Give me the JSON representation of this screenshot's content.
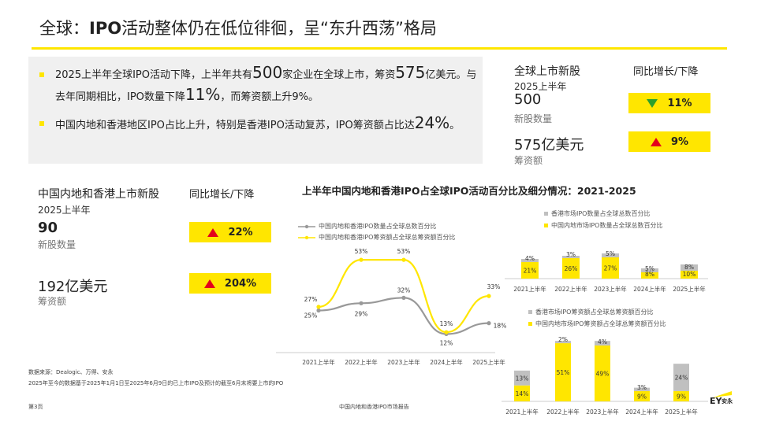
{
  "title": {
    "prefix": "全球：",
    "bold": "IPO",
    "suffix": "活动整体仍在低位徘徊，呈“东升西荡”格局"
  },
  "summary": {
    "bullet1": {
      "t1": "2025上半年全球IPO活动下降，上半年共有",
      "n1": "500",
      "t2": "家企业在全球上市，筹资",
      "n2": "575",
      "t3": "亿美元。与去年同期相比，IPO数量下降",
      "n3": "11%",
      "t4": "，而筹资额上升9%。"
    },
    "bullet2": {
      "t1": "中国内地和香港地区IPO占比上升，特别是香港IPO活动复苏，IPO筹资额占比达",
      "n1": "24%",
      "t2": "。"
    }
  },
  "global": {
    "heading": "全球上市新股",
    "yoy_heading": "同比增长/下降",
    "period": "2025上半年",
    "count_value": "500",
    "count_label": "新股数量",
    "count_change": "11%",
    "funds_value": "575亿美元",
    "funds_label": "筹资额",
    "funds_change": "9%"
  },
  "china": {
    "heading": "中国内地和香港上市新股",
    "yoy_heading": "同比增长/下降",
    "period": "2025上半年",
    "count_value": "90",
    "count_label": "新股数量",
    "count_change": "22%",
    "funds_value": "192亿美元",
    "funds_label": "筹资额",
    "funds_change": "204%"
  },
  "charts_title": "上半年中国内地和香港IPO占全球IPO活动百分比及细分情况：2021-2025",
  "chart_data": [
    {
      "type": "line",
      "categories": [
        "2021上半年",
        "2022上半年",
        "2023上半年",
        "2024上半年",
        "2025上半年"
      ],
      "series": [
        {
          "name": "中国内地和香港IPO数量占全球总数百分比",
          "values": [
            25,
            29,
            32,
            12,
            18
          ],
          "labels": [
            "25%",
            "29%",
            "32%",
            "12%",
            "18%"
          ],
          "color": "#999999"
        },
        {
          "name": "中国内地和香港IPO筹资额占全球总筹资额百分比",
          "values": [
            27,
            53,
            53,
            13,
            33
          ],
          "labels": [
            "27%",
            "53%",
            "53%",
            "13%",
            "33%"
          ],
          "color": "#ffe600"
        }
      ]
    },
    {
      "type": "bar",
      "stacked": true,
      "categories": [
        "2021上半年",
        "2022上半年",
        "2023上半年",
        "2024上半年",
        "2025上半年"
      ],
      "series": [
        {
          "name": "香港市场IPO数量占全球总数百分比",
          "values": [
            4,
            3,
            5,
            5,
            8
          ],
          "labels": [
            "4%",
            "3%",
            "5%",
            "5%",
            "8%"
          ],
          "color": "#c0c0c0"
        },
        {
          "name": "中国内地市场IPO数量占全球总数百分比",
          "values": [
            21,
            26,
            27,
            8,
            10
          ],
          "labels": [
            "21%",
            "26%",
            "27%",
            "8%",
            "10%"
          ],
          "color": "#ffe600"
        }
      ]
    },
    {
      "type": "bar",
      "stacked": true,
      "categories": [
        "2021上半年",
        "2022上半年",
        "2023上半年",
        "2024上半年",
        "2025上半年"
      ],
      "series": [
        {
          "name": "香港市场IPO筹资额占全球总筹资额百分比",
          "values": [
            13,
            2,
            4,
            3,
            24
          ],
          "labels": [
            "13%",
            "2%",
            "4%",
            "3%",
            "24%"
          ],
          "color": "#c0c0c0"
        },
        {
          "name": "中国内地市场IPO筹资额占全球总筹资额百分比",
          "values": [
            14,
            51,
            49,
            9,
            9
          ],
          "labels": [
            "14%",
            "51%",
            "49%",
            "9%",
            "9%"
          ],
          "color": "#ffe600"
        }
      ]
    }
  ],
  "footer": {
    "source": "数据来源：Dealogic、万得、安永",
    "note": "2025年至今的数据基于2025年1月1日至2025年6月9日的已上市IPO及预计的截至6月末将要上市的IPO",
    "page": "第3页",
    "report": "中国内地和香港IPO市场报告",
    "logo": "EY",
    "logo_cn": "安永"
  },
  "colors": {
    "accent": "#ffe600",
    "gray": "#999999",
    "up": "#e4001b",
    "down": "#2ca02c"
  }
}
